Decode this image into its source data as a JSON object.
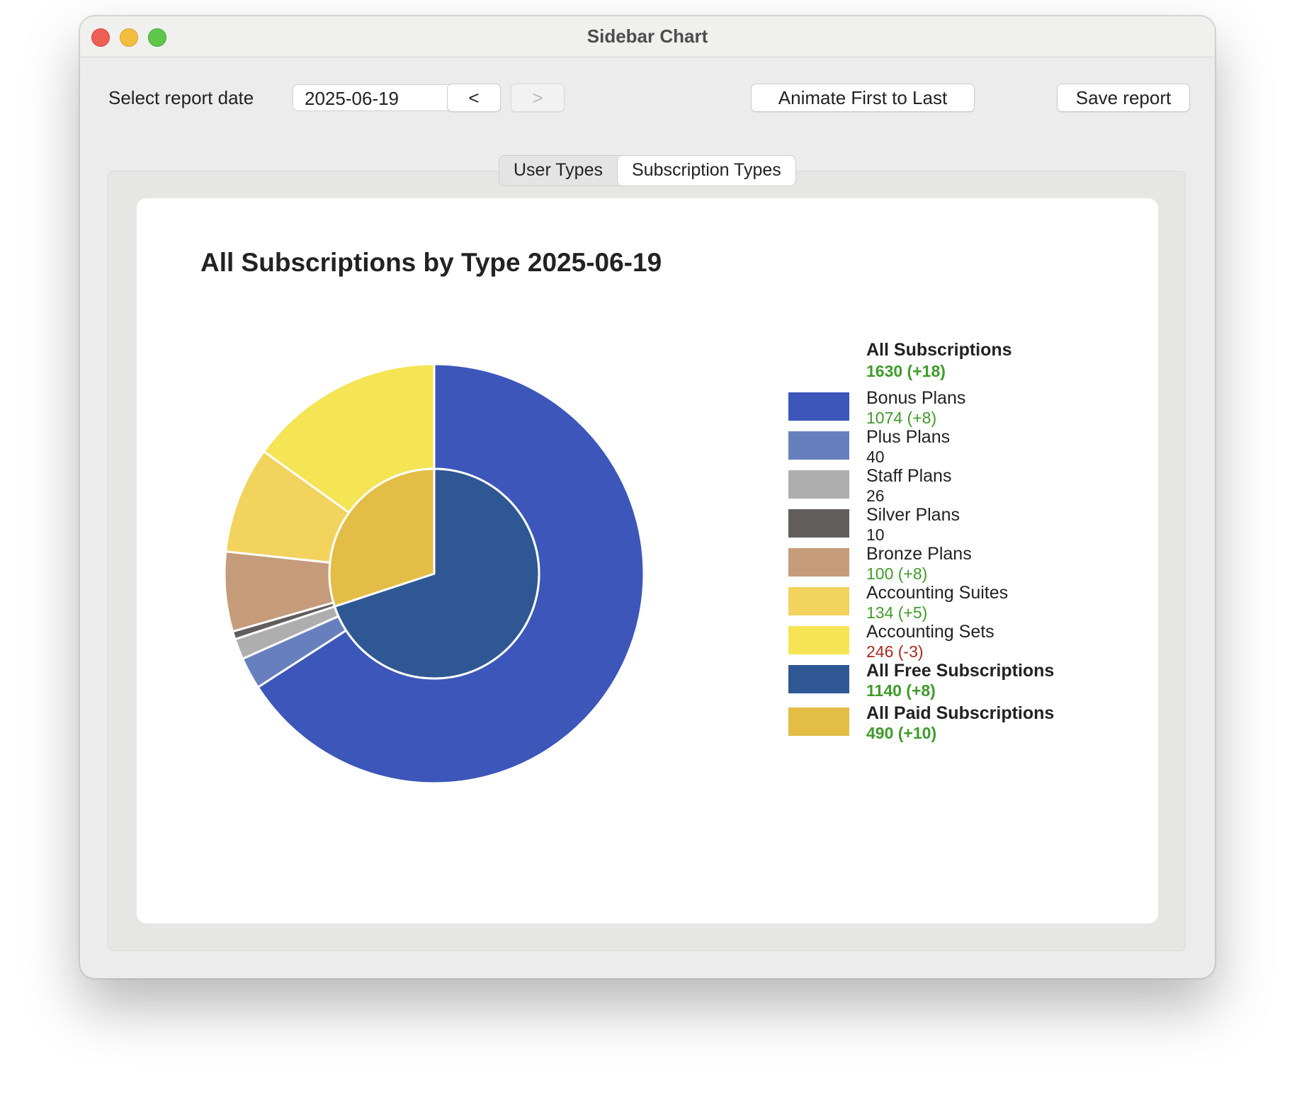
{
  "window": {
    "title": "Sidebar Chart"
  },
  "toolbar": {
    "date_label": "Select report date",
    "date_value": "2025-06-19",
    "prev_label": "<",
    "next_label": ">",
    "animate_label": "Animate First to Last",
    "save_label": "Save report"
  },
  "tabs": [
    {
      "label": "User Types",
      "active": false
    },
    {
      "label": "Subscription Types",
      "active": true
    }
  ],
  "legend": {
    "total_name": "All Subscriptions",
    "total_value": "1630 (+18)",
    "items": [
      {
        "name": "Bonus Plans",
        "value": "1074 (+8)",
        "color": "#3c56b9",
        "value_color": "#3f9b2a",
        "bold": false
      },
      {
        "name": "Plus Plans",
        "value": "40",
        "color": "#6780bd",
        "value_color": "#222222",
        "bold": false
      },
      {
        "name": "Staff Plans",
        "value": "26",
        "color": "#aeaeae",
        "value_color": "#222222",
        "bold": false
      },
      {
        "name": "Silver Plans",
        "value": "10",
        "color": "#625d5d",
        "value_color": "#222222",
        "bold": false
      },
      {
        "name": "Bronze Plans",
        "value": "100 (+8)",
        "color": "#c59b7a",
        "value_color": "#3f9b2a",
        "bold": false
      },
      {
        "name": "Accounting Suites",
        "value": "134 (+5)",
        "color": "#f1d35e",
        "value_color": "#3f9b2a",
        "bold": false
      },
      {
        "name": "Accounting Sets",
        "value": "246 (-3)",
        "color": "#f5e453",
        "value_color": "#a8281f",
        "bold": false
      },
      {
        "name": "All Free Subscriptions",
        "value": "1140 (+8)",
        "color": "#2f5794",
        "value_color": "#3f9b2a",
        "bold": true
      },
      {
        "name": "All Paid Subscriptions",
        "value": "490 (+10)",
        "color": "#e3bd45",
        "value_color": "#3f9b2a",
        "bold": true
      }
    ]
  },
  "chart_data": {
    "type": "pie",
    "title": "All Subscriptions by Type 2025-06-19",
    "total": 1630,
    "outer_ring": [
      {
        "label": "Bonus Plans",
        "value": 1074,
        "color": "#3c56b9"
      },
      {
        "label": "Plus Plans",
        "value": 40,
        "color": "#6780bd"
      },
      {
        "label": "Staff Plans",
        "value": 26,
        "color": "#aeaeae"
      },
      {
        "label": "Silver Plans",
        "value": 10,
        "color": "#625d5d"
      },
      {
        "label": "Bronze Plans",
        "value": 100,
        "color": "#c59b7a"
      },
      {
        "label": "Accounting Suites",
        "value": 134,
        "color": "#f1d35e"
      },
      {
        "label": "Accounting Sets",
        "value": 246,
        "color": "#f5e453"
      }
    ],
    "inner_ring": [
      {
        "label": "All Free Subscriptions",
        "value": 1140,
        "color": "#2f5794"
      },
      {
        "label": "All Paid Subscriptions",
        "value": 490,
        "color": "#e3bd45"
      }
    ],
    "legend_position": "right"
  }
}
